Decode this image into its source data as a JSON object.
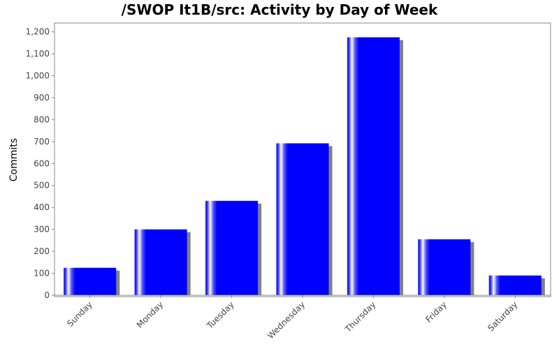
{
  "chart_data": {
    "type": "bar",
    "title": "/SWOP It1B/src: Activity by Day of Week",
    "xlabel": "",
    "ylabel": "Commits",
    "categories": [
      "Sunday",
      "Monday",
      "Tuesday",
      "Wednesday",
      "Thursday",
      "Friday",
      "Saturday"
    ],
    "values": [
      125,
      300,
      430,
      692,
      1175,
      255,
      90
    ],
    "ylim": [
      0,
      1240
    ],
    "yticks": [
      0,
      100,
      200,
      300,
      400,
      500,
      600,
      700,
      800,
      900,
      1000,
      1100,
      1200
    ],
    "ytick_labels": [
      "0",
      "100",
      "200",
      "300",
      "400",
      "500",
      "600",
      "700",
      "800",
      "900",
      "1,000",
      "1,100",
      "1,200"
    ],
    "grid": false,
    "legend": "none",
    "bar_color": "#0000ff",
    "shadow_color": "#808080"
  }
}
